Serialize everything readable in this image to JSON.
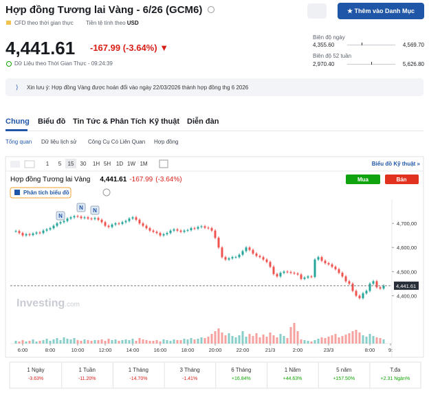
{
  "header": {
    "title": "Hợp đồng Tương lai Vàng - 6/26 (GCM6)",
    "cfd": "CFD theo thời gian thực",
    "currency_label": "Tiền tệ tính theo",
    "currency": "USD",
    "watchlist_button": "Thêm vào Danh Mục"
  },
  "quote": {
    "price": "4,441.61",
    "change": "-167.99",
    "change_pct": "(-3.64%)",
    "realtime": "Dữ Liệu theo Thời Gian Thực - 09:24:39"
  },
  "ranges": {
    "day_label": "Biên độ ngày",
    "day_low": "4,355.60",
    "day_high": "4,569.70",
    "year_label": "Biên độ 52 tuần",
    "year_low": "2,970.40",
    "year_high": "5,626.80"
  },
  "notice": "Xin lưu ý: Hợp đồng Vàng được hoán đổi vào ngày 22/03/2026 thành hợp đồng thg 6 2026",
  "tabs": [
    "Chung",
    "Biểu đồ",
    "Tin Tức & Phân Tích",
    "Kỹ thuật",
    "Diễn đàn"
  ],
  "subtabs": [
    "Tổng quan",
    "Dữ liệu lịch sử",
    "Công Cụ Có Liên Quan",
    "Hợp đồng"
  ],
  "intervals": [
    "1",
    "5",
    "15",
    "30",
    "1H",
    "5H",
    "1D",
    "1W",
    "1M"
  ],
  "tech_chart_link": "Biểu đồ Kỹ thuật »",
  "chart_header": {
    "name": "Hợp đồng Tương lai Vàng",
    "buy": "Mua",
    "sell": "Bán",
    "analysis": "Phân tích biểu đồ",
    "news_marker": "N",
    "watermark": "Investing",
    "watermark_suffix": ".com"
  },
  "performance": [
    [
      "1 Ngày",
      "-3.63%"
    ],
    [
      "1 Tuần",
      "-11.20%"
    ],
    [
      "1 Tháng",
      "-14.70%"
    ],
    [
      "3 Tháng",
      "-1.41%"
    ],
    [
      "6 Tháng",
      "+16.84%"
    ],
    [
      "1 Năm",
      "+44.63%"
    ],
    [
      "5 năm",
      "+157.50%"
    ],
    [
      "T.đa",
      "+2.31 Ngàn%"
    ]
  ],
  "chart_data": {
    "type": "candlestick",
    "up_color": "#26a69a",
    "down_color": "#ef5350",
    "values": [
      4668,
      4660,
      4650,
      4655,
      4652,
      4658,
      4662,
      4660,
      4670,
      4675,
      4680,
      4690,
      4700,
      4705,
      4710,
      4720,
      4725,
      4730,
      4728,
      4722,
      4725,
      4720,
      4718,
      4722,
      4715,
      4705,
      4690,
      4685,
      4695,
      4700,
      4698,
      4705,
      4710,
      4720,
      4725,
      4715,
      4700,
      4690,
      4680,
      4670,
      4665,
      4660,
      4650,
      4655,
      4660,
      4670,
      4675,
      4670,
      4665,
      4670,
      4672,
      4680,
      4678,
      4685,
      4688,
      4682,
      4680,
      4670,
      4640,
      4600,
      4560,
      4550,
      4555,
      4560,
      4560,
      4570,
      4585,
      4600,
      4590,
      4575,
      4565,
      4560,
      4550,
      4540,
      4520,
      4490,
      4480,
      4495,
      4500,
      4498,
      4495,
      4492,
      4488,
      4470,
      4475,
      4480,
      4478,
      4550,
      4560,
      4545,
      4535,
      4530,
      4520,
      4510,
      4495,
      4480,
      4460,
      4450,
      4420,
      4400,
      4390,
      4410,
      4420,
      4450,
      4460,
      4435,
      4430,
      4441.61
    ],
    "volume": [
      4,
      3,
      5,
      3,
      4,
      6,
      3,
      4,
      5,
      7,
      4,
      6,
      8,
      5,
      9,
      7,
      6,
      8,
      5,
      4,
      6,
      5,
      4,
      5,
      5,
      6,
      4,
      7,
      5,
      6,
      4,
      5,
      6,
      5,
      7,
      4,
      8,
      6,
      5,
      4,
      4,
      5,
      3,
      6,
      5,
      4,
      6,
      5,
      5,
      7,
      6,
      8,
      6,
      7,
      9,
      8,
      10,
      14,
      18,
      22,
      16,
      12,
      15,
      11,
      9,
      12,
      18,
      10,
      14,
      11,
      15,
      9,
      13,
      10,
      16,
      12,
      9,
      14,
      11,
      8,
      24,
      30,
      18,
      6,
      5,
      4,
      3,
      5,
      7,
      9,
      8,
      10,
      12,
      14,
      9,
      11,
      13,
      15,
      18,
      20,
      16,
      12,
      10,
      14,
      11,
      9,
      8,
      6
    ],
    "last_label": "4,441.61",
    "ylim": [
      4330,
      4800
    ],
    "yticks": [
      {
        "value": 4400,
        "label": "4,400,00"
      },
      {
        "value": 4500,
        "label": "4,500,00"
      },
      {
        "value": 4600,
        "label": "4,600,00"
      },
      {
        "value": 4700,
        "label": "4,700,00"
      }
    ],
    "xticks": [
      {
        "value": 2,
        "label": "6:00"
      },
      {
        "value": 10,
        "label": "8:00"
      },
      {
        "value": 18,
        "label": "10:00"
      },
      {
        "value": 26,
        "label": "12:00"
      },
      {
        "value": 34,
        "label": "14:00"
      },
      {
        "value": 42,
        "label": "16:00"
      },
      {
        "value": 50,
        "label": "18:00"
      },
      {
        "value": 58,
        "label": "20:00"
      },
      {
        "value": 66,
        "label": "22:00"
      },
      {
        "value": 74,
        "label": "21/3"
      },
      {
        "value": 82,
        "label": "2:00"
      },
      {
        "value": 91,
        "label": "23/3"
      },
      {
        "value": 103,
        "label": "8:00"
      },
      {
        "value": 109,
        "label": "9:"
      }
    ]
  }
}
